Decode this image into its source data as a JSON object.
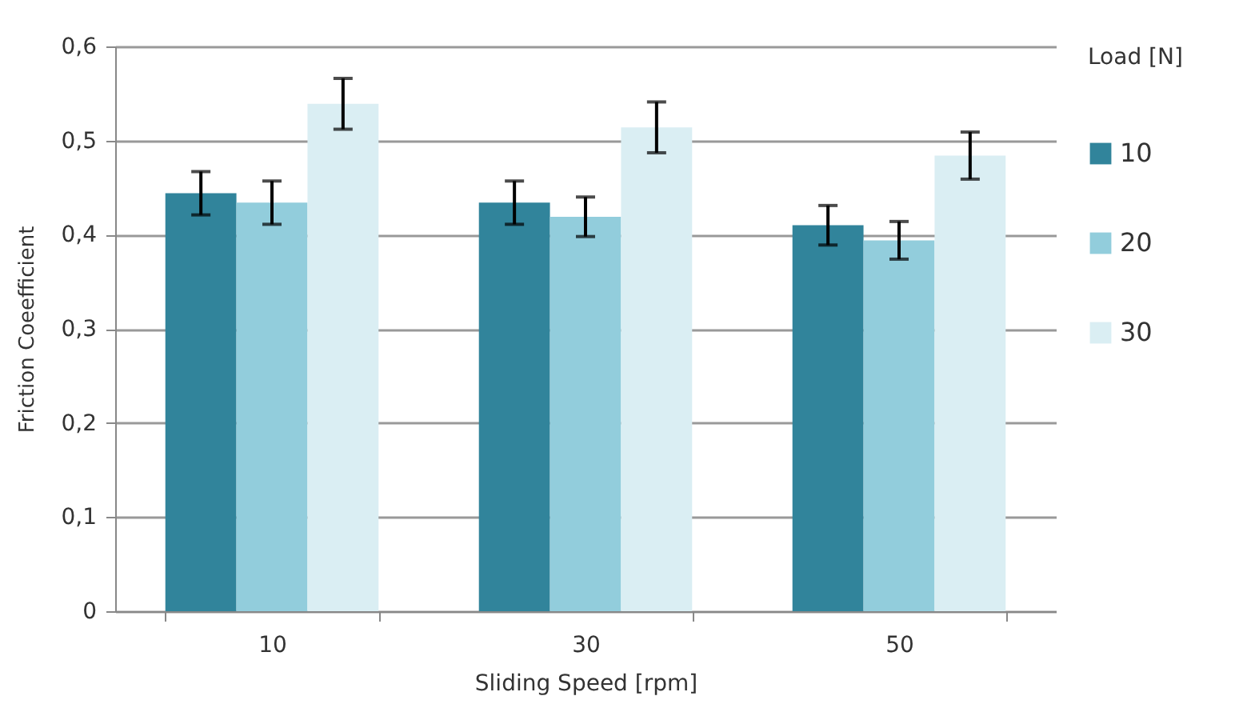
{
  "chart_data": {
    "type": "bar",
    "xlabel": "Sliding Speed [rpm]",
    "ylabel": "Friction Coeefficient",
    "legend_title": "Load [N]",
    "categories": [
      "10",
      "30",
      "50"
    ],
    "series": [
      {
        "name": "10",
        "color": "#31849b",
        "values": [
          0.444,
          0.434,
          0.41
        ],
        "errors": [
          0.023,
          0.023,
          0.021
        ]
      },
      {
        "name": "20",
        "color": "#92cddc",
        "values": [
          0.434,
          0.419,
          0.394
        ],
        "errors": [
          0.023,
          0.021,
          0.02
        ]
      },
      {
        "name": "30",
        "color": "#daeef3",
        "values": [
          0.539,
          0.514,
          0.484
        ],
        "errors": [
          0.027,
          0.027,
          0.025
        ]
      }
    ],
    "ylim": [
      0,
      0.6
    ],
    "yticks": [
      0,
      {
        "value": 0.1,
        "label": "0,1"
      },
      {
        "value": 0.2,
        "label": "0,2"
      },
      {
        "value": 0.3,
        "label": "0,3"
      },
      {
        "value": 0.4,
        "label": "0,4"
      },
      {
        "value": 0.5,
        "label": "0,5"
      },
      {
        "value": 0.6,
        "label": "0,6"
      }
    ],
    "grid": "y",
    "legend": "right"
  }
}
